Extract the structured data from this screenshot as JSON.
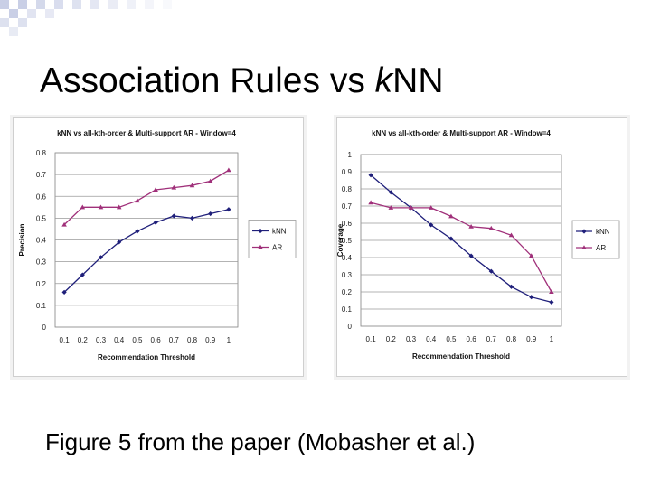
{
  "slide": {
    "title_prefix": "Association Rules vs ",
    "title_italic": "k",
    "title_suffix": "NN",
    "caption": "Figure 5 from the paper (Mobasher et al.)"
  },
  "chart_data": [
    {
      "type": "line",
      "title": "kNN vs all-kth-order & Multi-support AR - Window=4",
      "xlabel": "Recommendation Threshold",
      "ylabel": "Precision",
      "x": [
        0.1,
        0.2,
        0.3,
        0.4,
        0.5,
        0.6,
        0.7,
        0.8,
        0.9,
        1
      ],
      "x_tick_labels": [
        "0.1",
        "0.2",
        "0.3",
        "0.4",
        "0.5",
        "0.6",
        "0.7",
        "0.8",
        "0.9",
        "1"
      ],
      "ylim": [
        0,
        0.8
      ],
      "y_ticks": [
        0,
        0.1,
        0.2,
        0.3,
        0.4,
        0.5,
        0.6,
        0.7,
        0.8
      ],
      "y_tick_labels": [
        "0",
        "0.1",
        "0.2",
        "0.3",
        "0.4",
        "0.5",
        "0.6",
        "0.7",
        "0.8"
      ],
      "grid": true,
      "legend": "right",
      "series": [
        {
          "name": "kNN",
          "color": "#1f1f7a",
          "marker": "diamond",
          "values": [
            0.16,
            0.24,
            0.32,
            0.39,
            0.44,
            0.48,
            0.51,
            0.5,
            0.52,
            0.54
          ]
        },
        {
          "name": "AR",
          "color": "#a0307a",
          "marker": "triangle",
          "values": [
            0.47,
            0.55,
            0.55,
            0.55,
            0.58,
            0.63,
            0.64,
            0.65,
            0.67,
            0.72
          ]
        }
      ]
    },
    {
      "type": "line",
      "title": "kNN vs all-kth-order & Multi-support AR - Window=4",
      "xlabel": "Recommendation Threshold",
      "ylabel": "Coverage",
      "x": [
        0.1,
        0.2,
        0.3,
        0.4,
        0.5,
        0.6,
        0.7,
        0.8,
        0.9,
        1
      ],
      "x_tick_labels": [
        "0.1",
        "0.2",
        "0.3",
        "0.4",
        "0.5",
        "0.6",
        "0.7",
        "0.8",
        "0.9",
        "1"
      ],
      "ylim": [
        0,
        1
      ],
      "y_ticks": [
        0,
        0.1,
        0.2,
        0.3,
        0.4,
        0.5,
        0.6,
        0.7,
        0.8,
        0.9,
        1
      ],
      "y_tick_labels": [
        "0",
        "0.1",
        "0.2",
        "0.3",
        "0.4",
        "0.5",
        "0.6",
        "0.7",
        "0.8",
        "0.9",
        "1"
      ],
      "grid": true,
      "legend": "right",
      "series": [
        {
          "name": "kNN",
          "color": "#1f1f7a",
          "marker": "diamond",
          "values": [
            0.88,
            0.78,
            0.69,
            0.59,
            0.51,
            0.41,
            0.32,
            0.23,
            0.17,
            0.14
          ]
        },
        {
          "name": "AR",
          "color": "#a0307a",
          "marker": "triangle",
          "values": [
            0.72,
            0.69,
            0.69,
            0.69,
            0.64,
            0.58,
            0.57,
            0.53,
            0.41,
            0.2
          ]
        }
      ]
    }
  ]
}
